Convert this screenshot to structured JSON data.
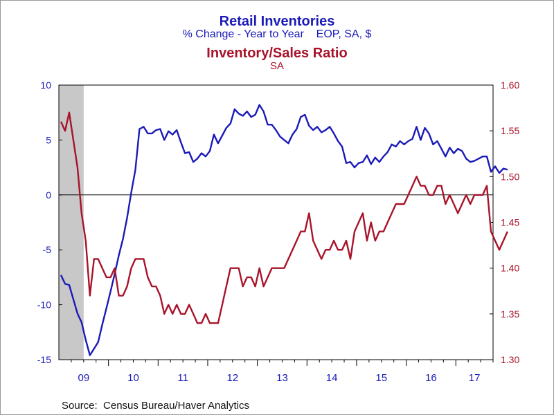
{
  "chart_data": {
    "type": "line",
    "title": "Retail Inventories",
    "subtitle": "% Change - Year to Year    EOP, SA, $",
    "title2": "Inventory/Sales Ratio",
    "subtitle2": "SA",
    "source": "Source:  Census Bureau/Haver Analytics",
    "x_range": [
      "2009-01",
      "2017-09"
    ],
    "x_ticks": [
      "09",
      "10",
      "11",
      "12",
      "13",
      "14",
      "15",
      "16",
      "17"
    ],
    "shaded_recession": [
      "2009-01",
      "2009-06"
    ],
    "zero_line": 0,
    "y_left": {
      "range": [
        -15,
        10
      ],
      "ticks": [
        10,
        5,
        0,
        -5,
        -10,
        -15
      ],
      "color": "#1a1ab8"
    },
    "y_right": {
      "range": [
        1.3,
        1.6
      ],
      "ticks": [
        "1.60",
        "1.55",
        "1.50",
        "1.45",
        "1.40",
        "1.35",
        "1.30"
      ],
      "color": "#a8132a"
    },
    "series": [
      {
        "name": "Retail Inventories",
        "axis": "left",
        "color": "#1a1ab8",
        "start": "2009-01",
        "values": [
          -7.3,
          -8.1,
          -8.2,
          -9.5,
          -10.8,
          -11.6,
          -13.2,
          -14.6,
          -14.0,
          -13.4,
          -11.8,
          -10.3,
          -8.8,
          -7.2,
          -5.5,
          -4.0,
          -2.1,
          0.2,
          2.3,
          6.0,
          6.2,
          5.6,
          5.6,
          5.9,
          6.0,
          5.0,
          5.8,
          5.5,
          5.9,
          4.8,
          3.8,
          3.9,
          3.0,
          3.3,
          3.8,
          3.5,
          4.0,
          5.5,
          4.7,
          5.4,
          6.1,
          6.5,
          7.8,
          7.4,
          7.2,
          7.6,
          7.1,
          7.3,
          8.2,
          7.6,
          6.4,
          6.4,
          5.9,
          5.3,
          5.0,
          4.7,
          5.5,
          6.0,
          7.1,
          7.3,
          6.3,
          5.9,
          6.2,
          5.7,
          5.9,
          6.2,
          5.6,
          4.9,
          4.4,
          2.9,
          3.0,
          2.5,
          2.9,
          3.0,
          3.6,
          2.8,
          3.4,
          3.0,
          3.5,
          3.9,
          4.6,
          4.4,
          4.9,
          4.6,
          4.9,
          5.1,
          6.2,
          5.0,
          6.1,
          5.6,
          4.6,
          4.9,
          4.2,
          3.5,
          4.3,
          3.8,
          4.2,
          4.0,
          3.3,
          3.0,
          3.1,
          3.3,
          3.5,
          3.5,
          2.1,
          2.6,
          2.0,
          2.4,
          2.3
        ]
      },
      {
        "name": "Inventory/Sales Ratio",
        "axis": "right",
        "color": "#a8132a",
        "start": "2009-01",
        "values": [
          1.56,
          1.55,
          1.57,
          1.54,
          1.51,
          1.46,
          1.43,
          1.37,
          1.41,
          1.41,
          1.4,
          1.39,
          1.39,
          1.4,
          1.37,
          1.37,
          1.38,
          1.4,
          1.41,
          1.41,
          1.41,
          1.39,
          1.38,
          1.38,
          1.37,
          1.35,
          1.36,
          1.35,
          1.36,
          1.35,
          1.35,
          1.36,
          1.35,
          1.34,
          1.34,
          1.35,
          1.34,
          1.34,
          1.34,
          1.36,
          1.38,
          1.4,
          1.4,
          1.4,
          1.38,
          1.39,
          1.39,
          1.38,
          1.4,
          1.38,
          1.39,
          1.4,
          1.4,
          1.4,
          1.4,
          1.41,
          1.42,
          1.43,
          1.44,
          1.44,
          1.46,
          1.43,
          1.42,
          1.41,
          1.42,
          1.42,
          1.43,
          1.42,
          1.42,
          1.43,
          1.41,
          1.44,
          1.45,
          1.46,
          1.43,
          1.45,
          1.43,
          1.44,
          1.44,
          1.45,
          1.46,
          1.47,
          1.47,
          1.47,
          1.48,
          1.49,
          1.5,
          1.49,
          1.49,
          1.48,
          1.48,
          1.49,
          1.49,
          1.47,
          1.48,
          1.47,
          1.46,
          1.47,
          1.48,
          1.47,
          1.48,
          1.48,
          1.48,
          1.49,
          1.44,
          1.43,
          1.42,
          1.43,
          1.44
        ]
      }
    ]
  }
}
